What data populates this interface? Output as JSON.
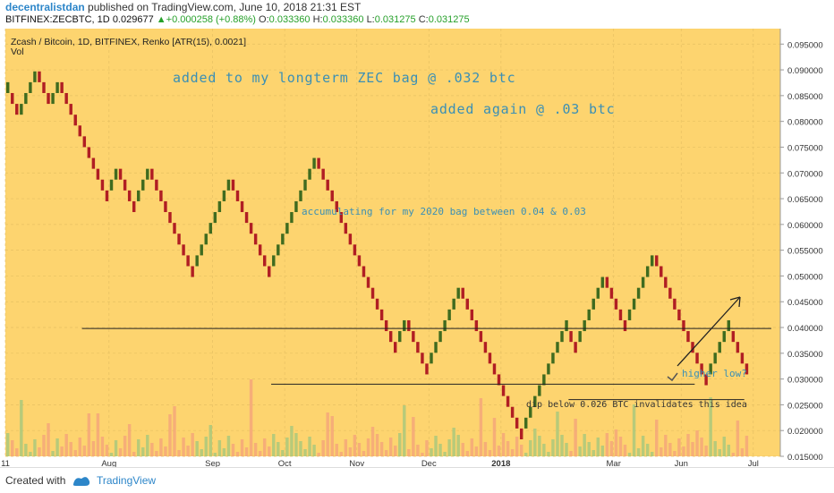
{
  "header": {
    "author": "decentralistdan",
    "published_text": "published on TradingView.com, June 10, 2018 21:31 EST",
    "symbol": "BITFINEX:ZECBTC, 1D",
    "price": "0.029677",
    "change_arrow": "▲",
    "change": "+0.000258 (+0.88%)",
    "o_label": "O:",
    "o_value": "0.033360",
    "h_label": "H:",
    "h_value": "0.033360",
    "l_label": "L:",
    "l_value": "0.031275",
    "c_label": "C:",
    "c_value": "0.031275"
  },
  "footer": {
    "created_with": "Created with",
    "brand": "TradingView"
  },
  "chart_data": {
    "type": "renko",
    "title": "Zcash / Bitcoin, 1D, BITFINEX, Renko [ATR(15), 0.0021]",
    "subtitle": "Vol",
    "box_size": 0.0021,
    "ylim": [
      0.015,
      0.098
    ],
    "y_ticks": [
      "0.095000",
      "0.090000",
      "0.085000",
      "0.080000",
      "0.075000",
      "0.070000",
      "0.065000",
      "0.060000",
      "0.055000",
      "0.050000",
      "0.045000",
      "0.040000",
      "0.035000",
      "0.030000",
      "0.025000",
      "0.020000",
      "0.015000"
    ],
    "x_ticks": [
      "11",
      "Aug",
      "Sep",
      "Oct",
      "Nov",
      "Dec",
      "2018",
      "Mar",
      "Jun",
      "Jul"
    ],
    "x_tick_index": [
      0,
      23,
      46,
      62,
      78,
      94,
      110,
      135,
      150,
      166
    ],
    "x_range": [
      0,
      172
    ],
    "brick_closes": [
      0.0876,
      0.0834,
      0.0813,
      0.0834,
      0.0855,
      0.0876,
      0.0897,
      0.0876,
      0.0855,
      0.0834,
      0.0855,
      0.0876,
      0.0855,
      0.0834,
      0.0813,
      0.0792,
      0.0771,
      0.075,
      0.0729,
      0.0708,
      0.0687,
      0.0666,
      0.0645,
      0.0687,
      0.0708,
      0.0687,
      0.0666,
      0.0645,
      0.0624,
      0.0666,
      0.0687,
      0.0708,
      0.0687,
      0.0666,
      0.0645,
      0.0624,
      0.0603,
      0.0582,
      0.0561,
      0.054,
      0.0519,
      0.0498,
      0.054,
      0.0561,
      0.0582,
      0.0603,
      0.0624,
      0.0645,
      0.0666,
      0.0687,
      0.0666,
      0.0645,
      0.0624,
      0.0603,
      0.0582,
      0.0561,
      0.054,
      0.0519,
      0.0498,
      0.054,
      0.0561,
      0.0582,
      0.0603,
      0.0624,
      0.0645,
      0.0666,
      0.0687,
      0.0708,
      0.0729,
      0.0708,
      0.0687,
      0.0666,
      0.0645,
      0.0624,
      0.0603,
      0.0582,
      0.0561,
      0.054,
      0.0519,
      0.0498,
      0.0477,
      0.0456,
      0.0435,
      0.0414,
      0.0393,
      0.0372,
      0.0351,
      0.0393,
      0.0414,
      0.0393,
      0.0372,
      0.0351,
      0.033,
      0.0309,
      0.0351,
      0.0372,
      0.0393,
      0.0414,
      0.0435,
      0.0456,
      0.0477,
      0.0456,
      0.0435,
      0.0414,
      0.0393,
      0.0372,
      0.0351,
      0.033,
      0.0309,
      0.0288,
      0.0267,
      0.0246,
      0.0225,
      0.0204,
      0.0183,
      0.0225,
      0.0246,
      0.0267,
      0.0288,
      0.0309,
      0.033,
      0.0351,
      0.0372,
      0.0393,
      0.0414,
      0.0372,
      0.0351,
      0.0393,
      0.0414,
      0.0435,
      0.0456,
      0.0477,
      0.0498,
      0.0477,
      0.0456,
      0.0435,
      0.0414,
      0.0393,
      0.0435,
      0.0456,
      0.0477,
      0.0498,
      0.0519,
      0.054,
      0.0519,
      0.0498,
      0.0477,
      0.0456,
      0.0435,
      0.0414,
      0.0393,
      0.0372,
      0.0351,
      0.033,
      0.0309,
      0.0288,
      0.033,
      0.0351,
      0.0372,
      0.0393,
      0.0414,
      0.0372,
      0.0351,
      0.033,
      0.0309
    ],
    "up_color": "#3f6b1f",
    "down_color": "#b01e23",
    "bg_color": "#fdd46f",
    "support_lines": [
      {
        "y": 0.0398,
        "x0": 17,
        "x1": 170
      },
      {
        "y": 0.029,
        "x0": 59,
        "x1": 153
      },
      {
        "y": 0.026,
        "x0": 125,
        "x1": 164
      }
    ],
    "annotations": [
      "added to my longterm ZEC bag @ .032 btc",
      "added again @ .03 btc",
      "accumulating for my 2020 bag between 0.04 & 0.03",
      "higher low?",
      "dip below 0.026 BTC invalidates this idea"
    ],
    "grid": true
  }
}
